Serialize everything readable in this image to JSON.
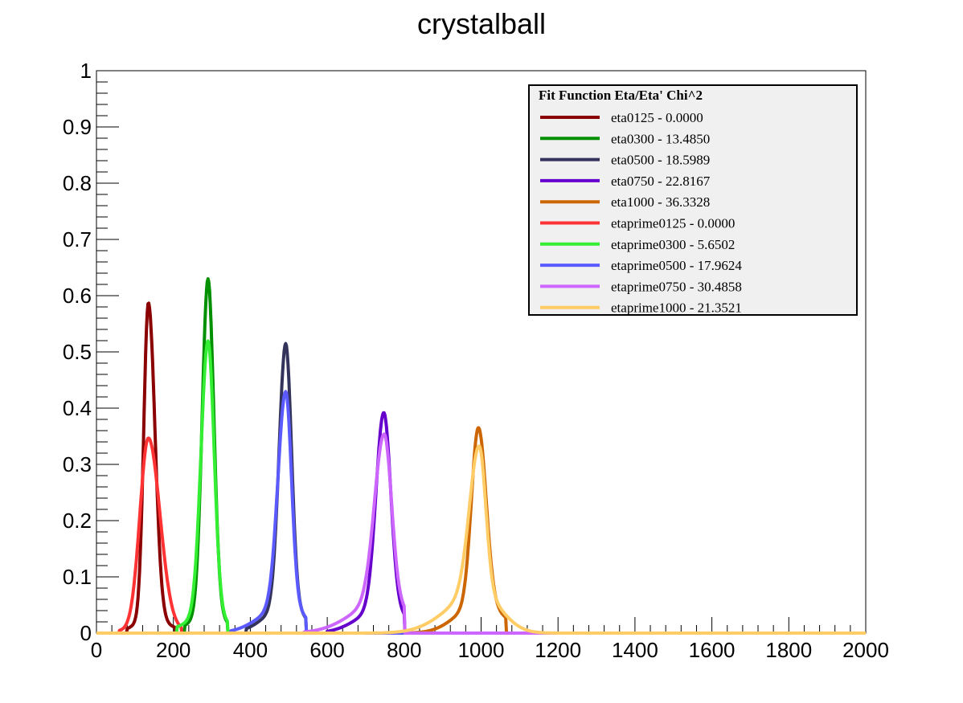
{
  "chart_data": {
    "type": "line",
    "title": "crystalball",
    "xlabel": "",
    "ylabel": "",
    "xlim": [
      0,
      2000
    ],
    "ylim": [
      0,
      1
    ],
    "x_ticks": [
      "0",
      "200",
      "400",
      "600",
      "800",
      "1000",
      "1200",
      "1400",
      "1600",
      "1800",
      "2000"
    ],
    "y_ticks": [
      "0",
      "0.1",
      "0.2",
      "0.3",
      "0.4",
      "0.5",
      "0.6",
      "0.7",
      "0.8",
      "0.9",
      "1"
    ],
    "grid": false,
    "legend_position": "top-right",
    "legend_title": "Fit Function Eta/Eta' Chi^2",
    "series": [
      {
        "name": "eta0125 - 0.0000",
        "color": "#8b0000",
        "peak_x": 135,
        "peak_y": 0.565,
        "sigma_left": 12,
        "sigma_right": 17,
        "tail": 0.04,
        "x_min": 80,
        "x_max": 205
      },
      {
        "name": "eta0300 - 13.4850",
        "color": "#009000",
        "peak_x": 290,
        "peak_y": 0.6,
        "sigma_left": 15,
        "sigma_right": 15,
        "tail": 0.05,
        "x_min": 230,
        "x_max": 340
      },
      {
        "name": "eta0500 - 18.5989",
        "color": "#33335c",
        "peak_x": 492,
        "peak_y": 0.468,
        "sigma_left": 17,
        "sigma_right": 15,
        "tail": 0.1,
        "x_min": 390,
        "x_max": 545
      },
      {
        "name": "eta0750 - 22.8167",
        "color": "#6600cc",
        "peak_x": 747,
        "peak_y": 0.347,
        "sigma_left": 20,
        "sigma_right": 18,
        "tail": 0.13,
        "x_min": 600,
        "x_max": 800
      },
      {
        "name": "eta1000 - 36.3328",
        "color": "#cc6600",
        "peak_x": 993,
        "peak_y": 0.315,
        "sigma_left": 18,
        "sigma_right": 20,
        "tail": 0.16,
        "x_min": 820,
        "x_max": 1065
      },
      {
        "name": "etaprime0125 - 0.0000",
        "color": "#ff3333",
        "peak_x": 135,
        "peak_y": 0.34,
        "sigma_left": 22,
        "sigma_right": 30,
        "tail": 0.02,
        "x_min": 60,
        "x_max": 220
      },
      {
        "name": "etaprime0300 - 5.6502",
        "color": "#33ee33",
        "peak_x": 290,
        "peak_y": 0.49,
        "sigma_left": 18,
        "sigma_right": 16,
        "tail": 0.06,
        "x_min": 210,
        "x_max": 340
      },
      {
        "name": "etaprime0500 - 17.9624",
        "color": "#5a5aff",
        "peak_x": 492,
        "peak_y": 0.38,
        "sigma_left": 20,
        "sigma_right": 15,
        "tail": 0.13,
        "x_min": 350,
        "x_max": 545
      },
      {
        "name": "etaprime0750 - 30.4858",
        "color": "#cc66ff",
        "peak_x": 748,
        "peak_y": 0.295,
        "sigma_left": 25,
        "sigma_right": 19,
        "tail": 0.2,
        "x_min": 540,
        "x_max": 800
      },
      {
        "name": "etaprime1000 - 21.3521",
        "color": "#ffcc66",
        "peak_x": 995,
        "peak_y": 0.26,
        "sigma_left": 25,
        "sigma_right": 17,
        "tail": 0.28,
        "x_min": 0,
        "x_max": 2000
      }
    ]
  }
}
